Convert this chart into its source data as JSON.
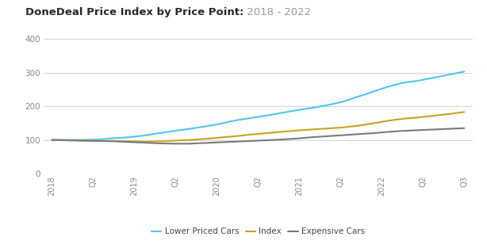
{
  "title_bold": "DoneDeal Price Index by Price Point:",
  "title_light": " 2018 - 2022",
  "x_labels": [
    "2018",
    "Q2",
    "2019",
    "Q2",
    "2020",
    "Q2",
    "2021",
    "Q2",
    "2022",
    "Q2",
    "Q3"
  ],
  "lower_priced": [
    100,
    100,
    100,
    101,
    105,
    108,
    113,
    120,
    127,
    133,
    140,
    148,
    158,
    165,
    172,
    180,
    188,
    195,
    203,
    213,
    228,
    243,
    258,
    270,
    276,
    285,
    294,
    303
  ],
  "index": [
    100,
    99,
    98,
    97,
    97,
    96,
    95,
    96,
    98,
    100,
    103,
    107,
    111,
    116,
    120,
    124,
    128,
    131,
    134,
    137,
    142,
    149,
    157,
    163,
    167,
    172,
    177,
    183
  ],
  "expensive": [
    100,
    99,
    98,
    97,
    96,
    94,
    92,
    90,
    89,
    89,
    91,
    93,
    95,
    97,
    99,
    101,
    104,
    108,
    111,
    114,
    117,
    120,
    124,
    127,
    129,
    131,
    133,
    135
  ],
  "lower_color": "#4BC8E8",
  "index_color": "#CCA020",
  "expensive_color": "#7A7A7A",
  "bg_color": "#FFFFFF",
  "grid_color": "#cccccc",
  "tick_color": "#888888",
  "ylim": [
    0,
    420
  ],
  "yticks": [
    0,
    100,
    200,
    300,
    400
  ],
  "legend_labels": [
    "Lower Priced Cars",
    "Index",
    "Expensive Cars"
  ],
  "legend_marker_color_lower": "#4BC8E8",
  "legend_marker_color_index": "#CCA020",
  "legend_marker_color_expensive": "#7A7A7A"
}
